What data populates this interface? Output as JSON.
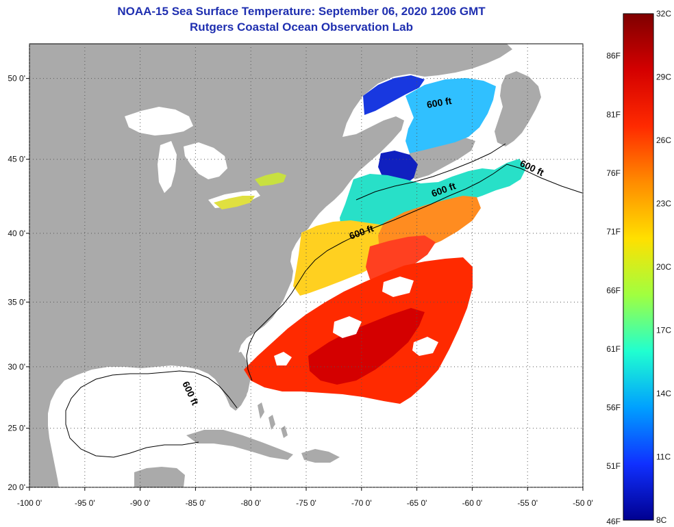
{
  "title": {
    "line1": "NOAA-15 Sea Surface Temperature:  September 06, 2020 1206 GMT",
    "line2": "Rutgers Coastal Ocean Observation Lab"
  },
  "map": {
    "lon_range": [
      -100,
      -50
    ],
    "lat_range": [
      20,
      52
    ],
    "lat_ticks": [
      {
        "lat": 20,
        "label": "20 0'"
      },
      {
        "lat": 25,
        "label": "25 0'"
      },
      {
        "lat": 30,
        "label": "30 0'"
      },
      {
        "lat": 35,
        "label": "35 0'"
      },
      {
        "lat": 40,
        "label": "40 0'"
      },
      {
        "lat": 45,
        "label": "45 0'"
      },
      {
        "lat": 50,
        "label": "50 0'"
      }
    ],
    "lon_ticks": [
      {
        "lon": -100,
        "label": "-100 0'"
      },
      {
        "lon": -95,
        "label": "-95 0'"
      },
      {
        "lon": -90,
        "label": "-90 0'"
      },
      {
        "lon": -85,
        "label": "-85 0'"
      },
      {
        "lon": -80,
        "label": "-80 0'"
      },
      {
        "lon": -75,
        "label": "-75 0'"
      },
      {
        "lon": -70,
        "label": "-70 0'"
      },
      {
        "lon": -65,
        "label": "-65 0'"
      },
      {
        "lon": -60,
        "label": "-60 0'"
      },
      {
        "lon": -55,
        "label": "-55 0'"
      },
      {
        "lon": -50,
        "label": "-50 0'"
      }
    ],
    "contour_label": "600 ft",
    "land_color": "#aaaaaa",
    "cloud_color": "#ffffff"
  },
  "colorbar": {
    "celsius": [
      "32C",
      "29C",
      "26C",
      "23C",
      "20C",
      "17C",
      "14C",
      "11C",
      "8C"
    ],
    "fahrenheit": [
      "86F",
      "81F",
      "76F",
      "71F",
      "66F",
      "61F",
      "56F",
      "51F",
      "46F"
    ],
    "colors": [
      "#7f0000",
      "#d40000",
      "#ff2a00",
      "#ff8c00",
      "#ffe000",
      "#a0ff40",
      "#20ffd0",
      "#00a0ff",
      "#1030ff",
      "#000090"
    ]
  }
}
